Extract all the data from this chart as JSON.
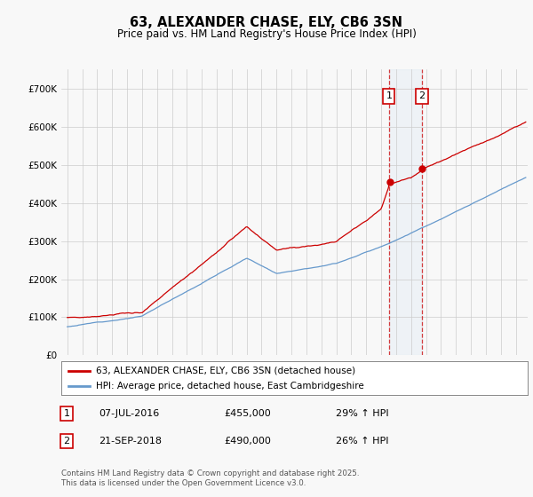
{
  "title": "63, ALEXANDER CHASE, ELY, CB6 3SN",
  "subtitle": "Price paid vs. HM Land Registry's House Price Index (HPI)",
  "legend_line1": "63, ALEXANDER CHASE, ELY, CB6 3SN (detached house)",
  "legend_line2": "HPI: Average price, detached house, East Cambridgeshire",
  "sale1_date": "07-JUL-2016",
  "sale1_price": 455000,
  "sale1_hpi": "29% ↑ HPI",
  "sale2_date": "21-SEP-2018",
  "sale2_price": 490000,
  "sale2_hpi": "26% ↑ HPI",
  "footer": "Contains HM Land Registry data © Crown copyright and database right 2025.\nThis data is licensed under the Open Government Licence v3.0.",
  "red_color": "#cc0000",
  "blue_color": "#6699cc",
  "bg_color": "#f0f0f0",
  "plot_bg": "#f0f0f0",
  "grid_color": "#cccccc",
  "ylim": [
    0,
    750000
  ],
  "yticks": [
    0,
    100000,
    200000,
    300000,
    400000,
    500000,
    600000,
    700000
  ],
  "start_year": 1995,
  "end_year": 2025,
  "sale1_year": 2016.52,
  "sale2_year": 2018.72
}
